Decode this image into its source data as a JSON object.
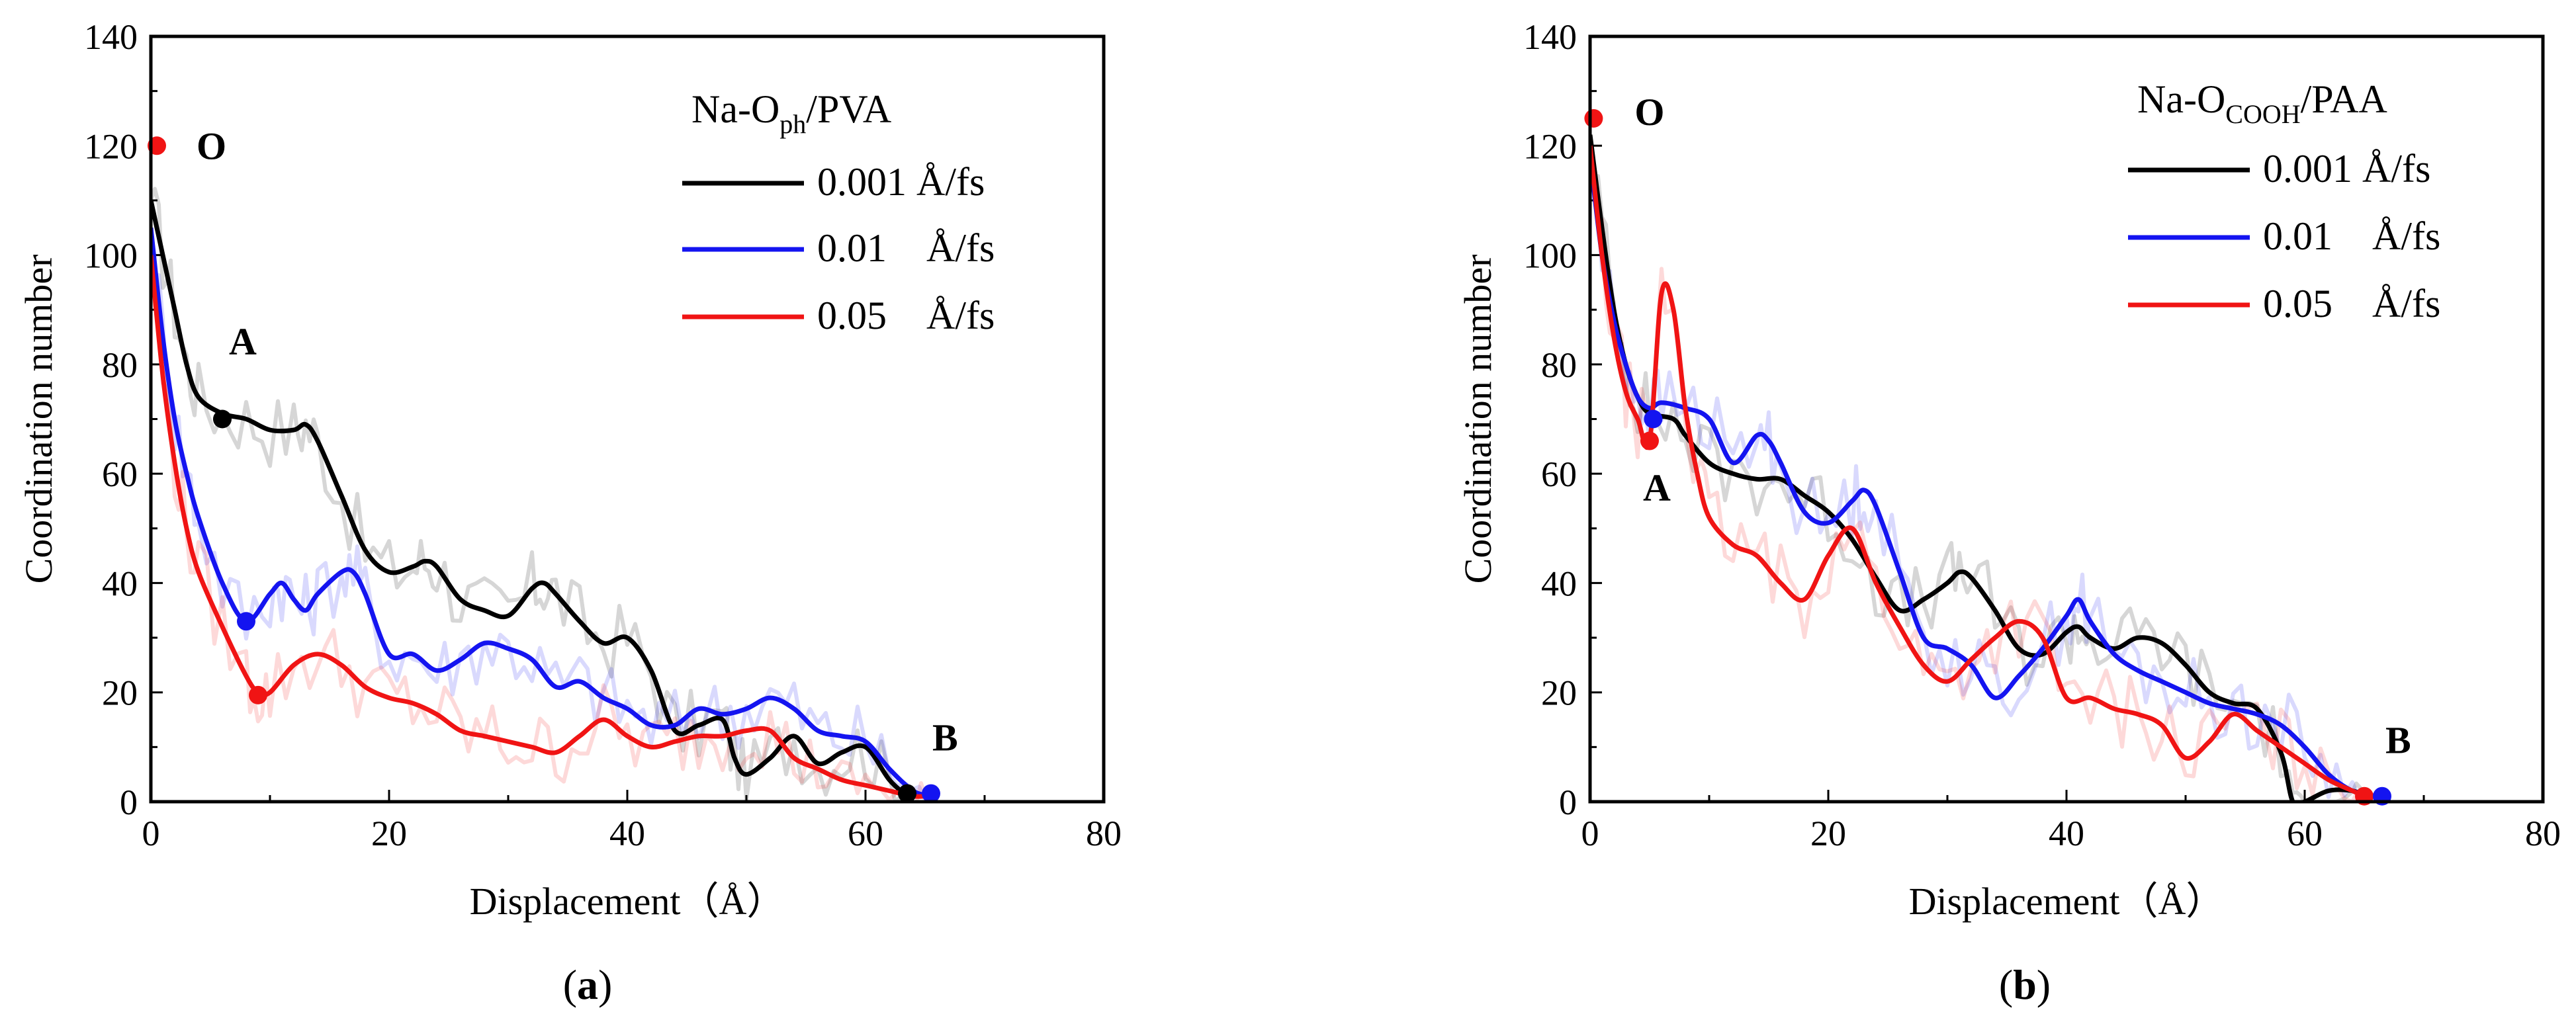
{
  "chart_data": [
    {
      "type": "line",
      "panel": "a",
      "caption_open": "(",
      "caption_letter": "a",
      "caption_close": ")",
      "legend_title": {
        "main": "Na-O",
        "sub": "ph",
        "rest": "/PVA"
      },
      "xlabel": "Displacement（Å）",
      "ylabel": "Coordination number",
      "xlim": [
        0,
        80
      ],
      "ylim": [
        0,
        140
      ],
      "xticks": [
        0,
        20,
        40,
        60,
        80
      ],
      "yticks": [
        0,
        20,
        40,
        60,
        80,
        100,
        120,
        140
      ],
      "series": [
        {
          "name": "0.001 Å/fs",
          "color": "#000000",
          "faint": "rgba(0,0,0,0.16)",
          "x": [
            0,
            1,
            2,
            3,
            4,
            6,
            8,
            10,
            12,
            13,
            14,
            16,
            18,
            20,
            22,
            23,
            24,
            26,
            28,
            30,
            32,
            33,
            34,
            36,
            38,
            40,
            42,
            44,
            46,
            48,
            49,
            50,
            52,
            54,
            56,
            58,
            60,
            62,
            63.5
          ],
          "y": [
            110,
            100,
            90,
            80,
            74,
            71,
            70,
            68,
            68,
            69,
            66,
            56,
            46,
            42,
            43,
            44,
            43,
            37,
            35,
            34,
            39,
            40,
            38,
            33,
            29,
            30,
            24,
            13,
            14,
            15,
            8,
            5,
            8,
            12,
            7,
            9,
            10,
            4,
            1
          ]
        },
        {
          "name": "0.01    Å/fs",
          "color": "#1414f0",
          "faint": "rgba(20,20,240,0.16)",
          "x": [
            0,
            1,
            2,
            3,
            4,
            6,
            8,
            10,
            11,
            12,
            13,
            14,
            16,
            17,
            18,
            20,
            22,
            24,
            26,
            28,
            30,
            32,
            34,
            36,
            38,
            40,
            42,
            44,
            46,
            48,
            50,
            52,
            54,
            56,
            58,
            60,
            62,
            64,
            65.5
          ],
          "y": [
            105,
            85,
            70,
            60,
            52,
            40,
            33,
            38,
            40,
            37,
            35,
            38,
            42,
            42,
            38,
            27,
            27,
            24,
            26,
            29,
            28,
            26,
            21,
            22,
            19,
            17,
            14,
            14,
            17,
            16,
            17,
            19,
            17,
            13,
            12,
            11,
            6,
            2,
            1
          ]
        },
        {
          "name": "0.05    Å/fs",
          "color": "#f01414",
          "faint": "rgba(240,20,20,0.16)",
          "x": [
            0,
            1,
            2,
            3,
            4,
            6,
            8,
            9,
            10,
            12,
            14,
            16,
            18,
            20,
            22,
            24,
            26,
            28,
            30,
            32,
            34,
            36,
            38,
            40,
            42,
            44,
            46,
            48,
            50,
            52,
            54,
            56,
            58,
            60,
            62,
            64,
            65
          ],
          "y": [
            100,
            78,
            62,
            50,
            42,
            32,
            23,
            20,
            20,
            25,
            27,
            25,
            21,
            19,
            18,
            16,
            13,
            12,
            11,
            10,
            9,
            12,
            15,
            12,
            10,
            11,
            12,
            12,
            13,
            13,
            8,
            6,
            4,
            3,
            2,
            1,
            1
          ]
        }
      ],
      "points": [
        {
          "label": "O",
          "x": 0.5,
          "y": 120,
          "color": "#f01414"
        },
        {
          "label": "A",
          "x": 6,
          "y": 70,
          "color": "#000000"
        },
        {
          "label": "",
          "x": 8,
          "y": 33,
          "color": "#1414f0"
        },
        {
          "label": "",
          "x": 9,
          "y": 19.5,
          "color": "#f01414"
        },
        {
          "label": "B",
          "x": 63.5,
          "y": 1.5,
          "color": "#000000"
        },
        {
          "label": "",
          "x": 65.5,
          "y": 1.5,
          "color": "#1414f0"
        }
      ]
    },
    {
      "type": "line",
      "panel": "b",
      "caption_open": "(",
      "caption_letter": "b",
      "caption_close": ")",
      "legend_title": {
        "main": "Na-O",
        "sub": "COOH",
        "rest": "/PAA"
      },
      "xlabel": "Displacement（Å）",
      "ylabel": "Coordination number",
      "xlim": [
        0,
        80
      ],
      "ylim": [
        0,
        140
      ],
      "xticks": [
        0,
        20,
        40,
        60,
        80
      ],
      "yticks": [
        0,
        20,
        40,
        60,
        80,
        100,
        120,
        140
      ],
      "series": [
        {
          "name": "0.001 Å/fs",
          "color": "#000000",
          "faint": "rgba(0,0,0,0.16)",
          "x": [
            0,
            1,
            2,
            3,
            4,
            5,
            7,
            8,
            10,
            12,
            14,
            16,
            18,
            20,
            22,
            24,
            26,
            28,
            30,
            31,
            32,
            34,
            36,
            38,
            40,
            41,
            42,
            44,
            46,
            48,
            50,
            52,
            54,
            56,
            58,
            59,
            60,
            62,
            64,
            65
          ],
          "y": [
            122,
            105,
            90,
            80,
            74,
            71,
            70,
            67,
            62,
            60,
            59,
            59,
            56,
            53,
            48,
            41,
            35,
            37,
            40,
            42,
            41,
            35,
            28,
            27,
            31,
            32,
            30,
            28,
            30,
            29,
            25,
            20,
            18,
            17,
            9,
            0,
            0,
            2,
            2,
            1
          ]
        },
        {
          "name": "0.01    Å/fs",
          "color": "#1414f0",
          "faint": "rgba(20,20,240,0.16)",
          "x": [
            0,
            1,
            2,
            3,
            4,
            5,
            6,
            8,
            10,
            12,
            14,
            15,
            16,
            18,
            20,
            22,
            23,
            24,
            26,
            28,
            30,
            32,
            34,
            36,
            38,
            40,
            41,
            42,
            44,
            46,
            48,
            50,
            52,
            54,
            56,
            58,
            60,
            62,
            64,
            66
          ],
          "y": [
            118,
            100,
            88,
            80,
            74,
            72,
            73,
            72,
            70,
            62,
            67,
            66,
            62,
            53,
            51,
            55,
            57,
            54,
            42,
            30,
            28,
            25,
            19,
            23,
            28,
            34,
            37,
            33,
            27,
            24,
            22,
            20,
            18,
            17,
            16,
            14,
            10,
            5,
            2,
            1
          ]
        },
        {
          "name": "0.05    Å/fs",
          "color": "#f01414",
          "faint": "rgba(240,20,20,0.16)",
          "x": [
            0,
            1,
            2,
            3,
            4,
            5,
            6,
            7,
            8,
            9,
            10,
            12,
            14,
            16,
            18,
            20,
            22,
            24,
            26,
            28,
            30,
            32,
            34,
            36,
            38,
            40,
            42,
            44,
            46,
            48,
            50,
            52,
            54,
            56,
            58,
            60,
            62,
            64,
            65
          ],
          "y": [
            120,
            100,
            85,
            75,
            70,
            66,
            93,
            90,
            72,
            60,
            52,
            47,
            45,
            40,
            37,
            45,
            50,
            40,
            32,
            25,
            22,
            26,
            30,
            33,
            30,
            19,
            19,
            17,
            16,
            14,
            8,
            11,
            16,
            13,
            10,
            7,
            4,
            2,
            1
          ]
        }
      ],
      "points": [
        {
          "label": "O",
          "x": 0.3,
          "y": 125,
          "color": "#f01414"
        },
        {
          "label": "A",
          "x": 5,
          "y": 66,
          "color": "#f01414"
        },
        {
          "label": "",
          "x": 5.3,
          "y": 70,
          "color": "#1414f0"
        },
        {
          "label": "B",
          "x": 65,
          "y": 1,
          "color": "#f01414"
        },
        {
          "label": "",
          "x": 66.5,
          "y": 1,
          "color": "#1414f0"
        }
      ]
    }
  ]
}
